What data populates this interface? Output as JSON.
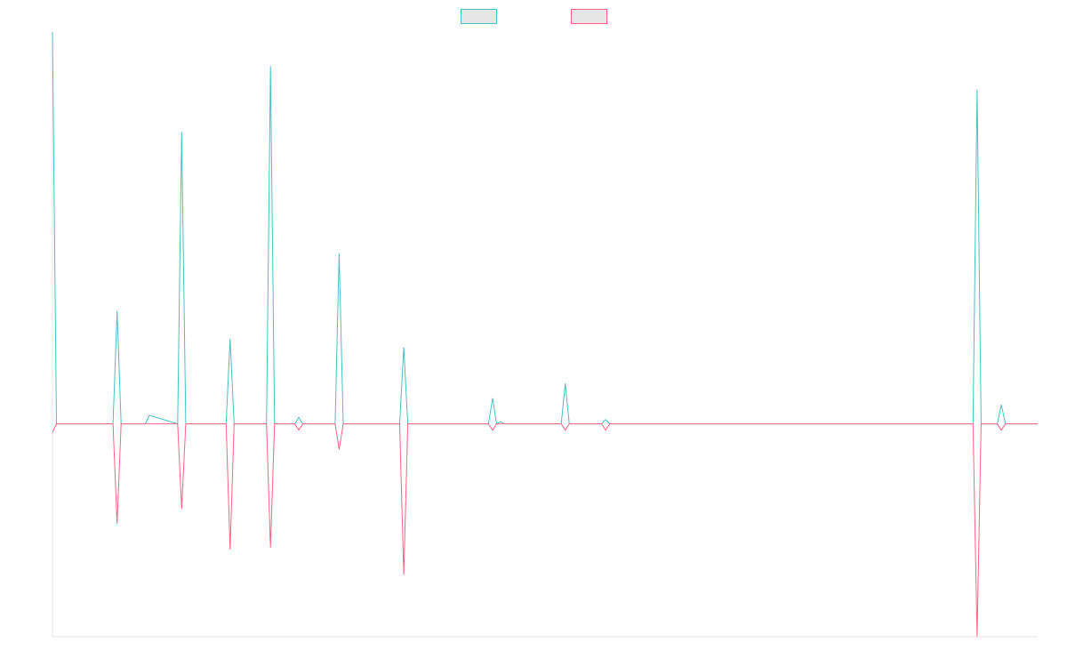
{
  "chart_data": {
    "type": "line",
    "title": "",
    "xlabel": "",
    "ylabel": "",
    "grid": false,
    "legend_position": "top-center",
    "x": [
      0,
      1,
      15,
      16,
      17,
      23,
      24,
      31,
      32,
      33,
      43,
      44,
      45,
      53,
      54,
      55,
      60,
      61,
      62,
      70,
      71,
      72,
      86,
      87,
      88,
      108,
      109,
      110,
      111,
      112,
      126,
      127,
      128,
      136,
      137,
      138,
      228,
      229,
      230,
      234,
      235,
      236,
      244
    ],
    "ylim": [
      -1.0,
      1.84
    ],
    "series": [
      {
        "name": "",
        "color": "#4bc0c0",
        "fill": "#e6e6e6",
        "values": [
          1.84,
          0,
          0,
          0.53,
          0,
          0,
          0.04,
          0,
          1.37,
          0,
          0,
          0.4,
          0,
          0,
          1.68,
          0,
          0,
          0.03,
          0,
          0,
          0.8,
          0,
          0,
          0.36,
          0,
          0,
          0.12,
          0,
          0.01,
          0,
          0,
          0.19,
          0,
          0,
          0.02,
          0,
          0,
          1.57,
          0,
          0,
          0.09,
          0,
          0
        ]
      },
      {
        "name": "",
        "color": "#ff6384",
        "fill": "#e6e6e6",
        "values": [
          -0.04,
          0,
          0,
          -0.47,
          0,
          0,
          0,
          0,
          -0.4,
          0,
          0,
          -0.59,
          0,
          0,
          -0.58,
          0,
          0,
          -0.03,
          0,
          0,
          -0.12,
          0,
          0,
          -0.71,
          0,
          0,
          -0.03,
          0,
          0,
          0,
          0,
          -0.03,
          0,
          0,
          -0.03,
          0,
          0,
          -1.0,
          0,
          0,
          -0.03,
          0,
          0
        ]
      }
    ]
  }
}
